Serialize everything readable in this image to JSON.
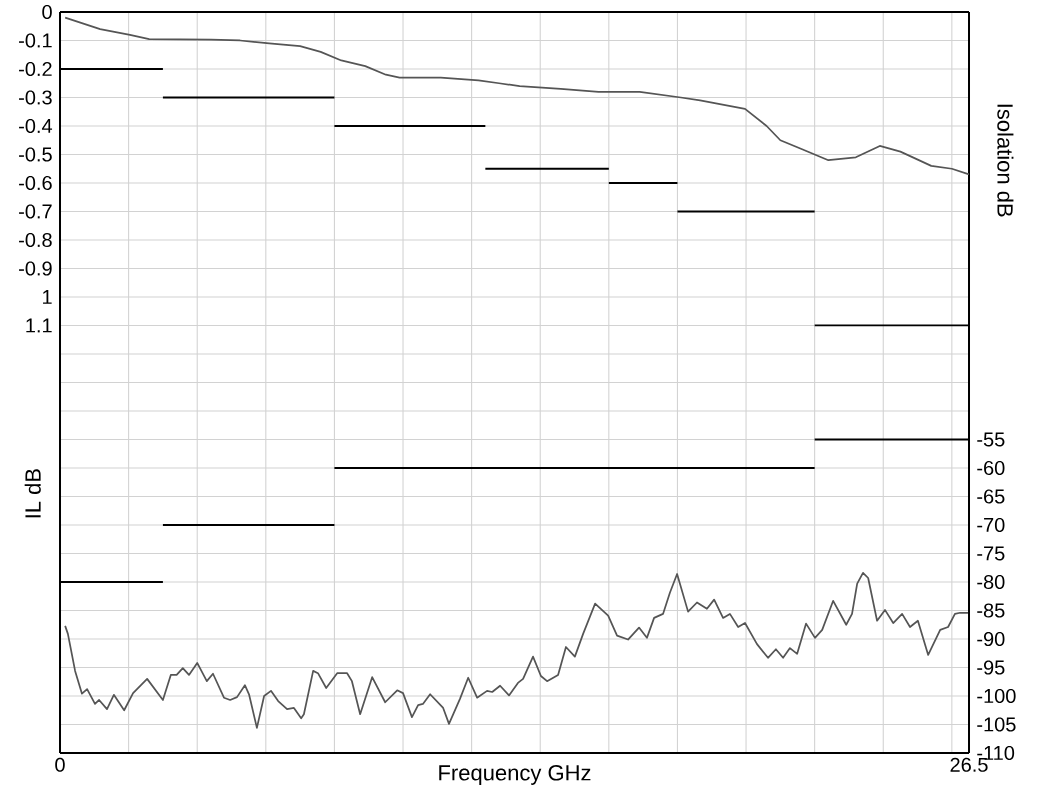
{
  "chart_data": {
    "type": "line",
    "xlabel": "Frequency GHz",
    "ylabel": "IL dB",
    "y2label": "Isolation dB",
    "xlim": [
      0,
      26.5
    ],
    "xticks": [
      0,
      {
        "value": 2,
        "label": null
      },
      {
        "value": 4,
        "label": null
      },
      {
        "value": 6,
        "label": null
      },
      {
        "value": 8,
        "label": null
      },
      {
        "value": 10,
        "label": null
      },
      {
        "value": 12,
        "label": null
      },
      {
        "value": 14,
        "label": null
      },
      {
        "value": 16,
        "label": null
      },
      {
        "value": 18,
        "label": null
      },
      {
        "value": 20,
        "label": null
      },
      {
        "value": 22,
        "label": null
      },
      {
        "value": 24,
        "label": null
      },
      {
        "value": 26,
        "label": null
      },
      26.5
    ],
    "ylim": [
      -2.6,
      0
    ],
    "yticks": [
      0,
      -0.1,
      -0.2,
      -0.3,
      -0.4,
      -0.5,
      -0.6,
      -0.7,
      -0.8,
      -0.9,
      {
        "value": -1,
        "label": "1"
      },
      {
        "value": -1.1,
        "label": "1.1"
      }
    ],
    "y2lim": [
      -110,
      20
    ],
    "y2ticks": [
      -110,
      -105,
      -100,
      -95,
      -90,
      -85,
      -80,
      -75,
      -70,
      -65,
      -60,
      -55,
      {
        "value": -50,
        "label": null
      },
      {
        "value": -45,
        "label": null
      },
      {
        "value": -40,
        "label": null
      },
      {
        "value": -35,
        "label": null
      },
      {
        "value": -30,
        "label": null
      },
      {
        "value": -25,
        "label": null
      },
      {
        "value": -20,
        "label": null
      },
      {
        "value": -15,
        "label": null
      },
      {
        "value": -10,
        "label": null
      },
      {
        "value": -5,
        "label": null
      },
      {
        "value": 0,
        "label": null
      },
      {
        "value": 5,
        "label": null
      },
      {
        "value": 10,
        "label": null
      },
      {
        "value": 15,
        "label": null
      }
    ],
    "grid": true,
    "series": [
      {
        "color": "#555555",
        "x": [
          0.15,
          1.17,
          2.04,
          2.6,
          4.4,
          5.25,
          6.1,
          7.0,
          7.6,
          8.2,
          8.9,
          9.5,
          9.9,
          11.1,
          12.2,
          12.8,
          13.4,
          14.6,
          15.7,
          16.9,
          18.1,
          18.66,
          19.97,
          20.6,
          21.0,
          21.6,
          22.4,
          23.2,
          23.9,
          24.5,
          25.4,
          26.0,
          26.5
        ],
        "values": [
          -0.02,
          -0.06,
          -0.08,
          -0.095,
          -0.097,
          -0.1,
          -0.11,
          -0.12,
          -0.14,
          -0.17,
          -0.19,
          -0.22,
          -0.23,
          -0.23,
          -0.24,
          -0.25,
          -0.26,
          -0.27,
          -0.28,
          -0.28,
          -0.3,
          -0.31,
          -0.34,
          -0.4,
          -0.45,
          -0.48,
          -0.52,
          -0.51,
          -0.47,
          -0.49,
          -0.54,
          -0.55,
          -0.57
        ]
      },
      {
        "color": "#000000",
        "x": [
          0,
          3
        ],
        "values": [
          -0.2,
          -0.2
        ]
      },
      {
        "color": "#000000",
        "x": [
          3,
          8
        ],
        "values": [
          -0.3,
          -0.3
        ]
      },
      {
        "color": "#000000",
        "x": [
          8,
          12.4
        ],
        "values": [
          -0.4,
          -0.4
        ]
      },
      {
        "color": "#000000",
        "x": [
          12.4,
          16
        ],
        "values": [
          -0.55,
          -0.55
        ]
      },
      {
        "color": "#000000",
        "x": [
          16,
          18
        ],
        "values": [
          -0.6,
          -0.6
        ]
      },
      {
        "color": "#000000",
        "x": [
          18,
          22
        ],
        "values": [
          -0.7,
          -0.7
        ]
      },
      {
        "color": "#000000",
        "x": [
          22,
          26.5
        ],
        "values": [
          -1.1,
          -1.1
        ]
      },
      {
        "color": "#555555",
        "axis": "y2",
        "x": [
          0.15,
          0.23,
          0.44,
          0.64,
          0.79,
          1.02,
          1.14,
          1.37,
          1.57,
          1.87,
          2.13,
          2.54,
          3.0,
          3.23,
          3.4,
          3.58,
          3.76,
          4.0,
          4.28,
          4.46,
          4.78,
          4.96,
          5.16,
          5.39,
          5.51,
          5.74,
          5.95,
          6.15,
          6.36,
          6.62,
          6.82,
          7.03,
          7.11,
          7.38,
          7.52,
          7.76,
          8.08,
          8.37,
          8.51,
          8.75,
          9.1,
          9.48,
          9.83,
          10.0,
          10.26,
          10.44,
          10.58,
          10.79,
          11.17,
          11.34,
          11.66,
          11.9,
          12.16,
          12.45,
          12.6,
          12.83,
          13.09,
          13.35,
          13.5,
          13.79,
          14.02,
          14.2,
          14.52,
          14.75,
          15.01,
          15.25,
          15.6,
          15.98,
          16.24,
          16.56,
          16.88,
          17.11,
          17.32,
          17.58,
          17.78,
          17.99,
          18.31,
          18.57,
          18.86,
          19.07,
          19.33,
          19.53,
          19.77,
          19.97,
          20.32,
          20.64,
          20.87,
          21.08,
          21.28,
          21.49,
          21.75,
          22.01,
          22.22,
          22.54,
          22.92,
          23.09,
          23.24,
          23.41,
          23.56,
          23.82,
          24.05,
          24.29,
          24.55,
          24.78,
          25.01,
          25.31,
          25.66,
          25.89,
          26.09,
          26.24,
          26.47
        ],
        "values": [
          -87.7,
          -89.1,
          -95.6,
          -99.6,
          -98.8,
          -101.4,
          -100.7,
          -102.3,
          -99.8,
          -102.5,
          -99.5,
          -97.0,
          -100.7,
          -96.3,
          -96.3,
          -95.1,
          -96.3,
          -94.2,
          -97.4,
          -96.1,
          -100.3,
          -100.7,
          -100.2,
          -98.1,
          -99.7,
          -105.6,
          -100.0,
          -99.1,
          -100.9,
          -102.3,
          -102.1,
          -103.9,
          -103.2,
          -95.6,
          -96.0,
          -98.6,
          -96.0,
          -96.0,
          -97.4,
          -103.2,
          -96.7,
          -101.1,
          -99.0,
          -99.5,
          -103.7,
          -101.6,
          -101.4,
          -99.7,
          -102.1,
          -104.9,
          -100.5,
          -96.8,
          -100.3,
          -99.1,
          -99.3,
          -98.2,
          -99.9,
          -97.7,
          -97.0,
          -93.1,
          -96.5,
          -97.4,
          -96.3,
          -91.4,
          -93.1,
          -89.1,
          -83.8,
          -85.9,
          -89.4,
          -90.1,
          -88.0,
          -89.8,
          -86.3,
          -85.6,
          -81.9,
          -78.6,
          -85.2,
          -83.6,
          -84.7,
          -83.1,
          -86.3,
          -85.6,
          -87.9,
          -87.2,
          -90.9,
          -93.3,
          -91.8,
          -93.3,
          -91.6,
          -92.6,
          -87.3,
          -89.8,
          -88.4,
          -83.3,
          -87.5,
          -85.6,
          -80.3,
          -78.4,
          -79.3,
          -86.8,
          -84.9,
          -87.2,
          -85.6,
          -87.9,
          -86.8,
          -92.8,
          -88.4,
          -87.9,
          -85.6,
          -85.4,
          -85.4
        ]
      },
      {
        "color": "#000000",
        "axis": "y2",
        "x": [
          0,
          3
        ],
        "values": [
          -80,
          -80
        ]
      },
      {
        "color": "#000000",
        "axis": "y2",
        "x": [
          3,
          8
        ],
        "values": [
          -70,
          -70
        ]
      },
      {
        "color": "#000000",
        "axis": "y2",
        "x": [
          8,
          22
        ],
        "values": [
          -60,
          -60
        ]
      },
      {
        "color": "#000000",
        "axis": "y2",
        "x": [
          22,
          26.5
        ],
        "values": [
          -55,
          -55
        ]
      }
    ]
  }
}
